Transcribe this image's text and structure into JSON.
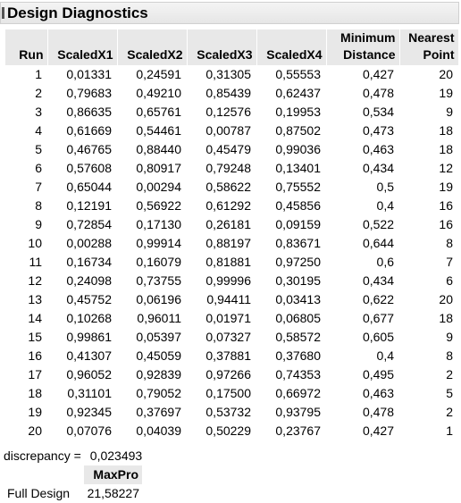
{
  "title": "Design Diagnostics",
  "table": {
    "headers": {
      "run": "Run",
      "x1": "ScaledX1",
      "x2": "ScaledX2",
      "x3": "ScaledX3",
      "x4": "ScaledX4",
      "min_line1": "Minimum",
      "min_line2": "Distance",
      "near_line1": "Nearest",
      "near_line2": "Point"
    },
    "rows": [
      [
        "1",
        "0,01331",
        "0,24591",
        "0,31305",
        "0,55553",
        "0,427",
        "20"
      ],
      [
        "2",
        "0,79683",
        "0,49210",
        "0,85439",
        "0,62437",
        "0,478",
        "19"
      ],
      [
        "3",
        "0,86635",
        "0,65761",
        "0,12576",
        "0,19953",
        "0,534",
        "9"
      ],
      [
        "4",
        "0,61669",
        "0,54461",
        "0,00787",
        "0,87502",
        "0,473",
        "18"
      ],
      [
        "5",
        "0,46765",
        "0,88440",
        "0,45479",
        "0,99036",
        "0,463",
        "18"
      ],
      [
        "6",
        "0,57608",
        "0,80917",
        "0,79248",
        "0,13401",
        "0,434",
        "12"
      ],
      [
        "7",
        "0,65044",
        "0,00294",
        "0,58622",
        "0,75552",
        "0,5",
        "19"
      ],
      [
        "8",
        "0,12191",
        "0,56922",
        "0,61292",
        "0,45856",
        "0,4",
        "16"
      ],
      [
        "9",
        "0,72854",
        "0,17130",
        "0,26181",
        "0,09159",
        "0,522",
        "16"
      ],
      [
        "10",
        "0,00288",
        "0,99914",
        "0,88197",
        "0,83671",
        "0,644",
        "8"
      ],
      [
        "11",
        "0,16734",
        "0,16079",
        "0,81881",
        "0,97250",
        "0,6",
        "7"
      ],
      [
        "12",
        "0,24098",
        "0,73755",
        "0,99996",
        "0,30195",
        "0,434",
        "6"
      ],
      [
        "13",
        "0,45752",
        "0,06196",
        "0,94411",
        "0,03413",
        "0,622",
        "20"
      ],
      [
        "14",
        "0,10268",
        "0,96011",
        "0,01971",
        "0,06805",
        "0,677",
        "18"
      ],
      [
        "15",
        "0,99861",
        "0,05397",
        "0,07327",
        "0,58572",
        "0,605",
        "9"
      ],
      [
        "16",
        "0,41307",
        "0,45059",
        "0,37881",
        "0,37680",
        "0,4",
        "8"
      ],
      [
        "17",
        "0,96052",
        "0,92839",
        "0,97266",
        "0,74353",
        "0,495",
        "2"
      ],
      [
        "18",
        "0,31101",
        "0,79052",
        "0,17500",
        "0,66972",
        "0,463",
        "5"
      ],
      [
        "19",
        "0,92345",
        "0,37697",
        "0,53732",
        "0,93795",
        "0,478",
        "2"
      ],
      [
        "20",
        "0,07076",
        "0,04039",
        "0,50229",
        "0,23767",
        "0,427",
        "1"
      ]
    ]
  },
  "discrepancy": {
    "label": "discrepancy =",
    "value": "0,023493"
  },
  "maxpro": {
    "header": "MaxPro",
    "row_label": "Full Design",
    "value": "21,58227"
  }
}
